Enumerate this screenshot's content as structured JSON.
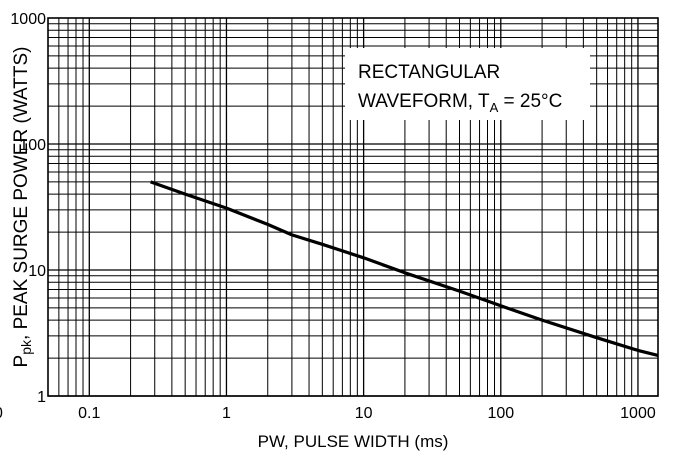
{
  "chart_data": {
    "type": "line",
    "title": "",
    "xlabel": "PW, PULSE WIDTH (ms)",
    "ylabel_prefix": "P",
    "ylabel_sub": "pk",
    "ylabel_rest": ", PEAK SURGE POWER (WATTS)",
    "x_scale": "log",
    "y_scale": "log",
    "xlim": [
      0.05,
      1400
    ],
    "ylim": [
      1,
      1000
    ],
    "x_ticks": [
      {
        "value": 0.1,
        "label": "0.1"
      },
      {
        "value": 1,
        "label": "1"
      },
      {
        "value": 10,
        "label": "10"
      },
      {
        "value": 100,
        "label": "100"
      },
      {
        "value": 1000,
        "label": "1000"
      }
    ],
    "x_tick_clipped_left_label": "0",
    "y_ticks": [
      {
        "value": 1,
        "label": "1"
      },
      {
        "value": 10,
        "label": "10"
      },
      {
        "value": 100,
        "label": "100"
      },
      {
        "value": 1000,
        "label": "1000"
      }
    ],
    "grid": true,
    "annotation": {
      "line1": "RECTANGULAR",
      "line2_prefix": "WAVEFORM, T",
      "line2_sub": "A",
      "line2_suffix": " = 25°C"
    },
    "series": [
      {
        "x": [
          0.28,
          0.5,
          1,
          2,
          3,
          5,
          10,
          20,
          50,
          100,
          200,
          500,
          1000,
          1400
        ],
        "y": [
          50,
          40,
          31,
          23,
          19,
          16,
          12.5,
          9.5,
          6.8,
          5.2,
          4.0,
          2.9,
          2.3,
          2.1
        ]
      }
    ]
  }
}
